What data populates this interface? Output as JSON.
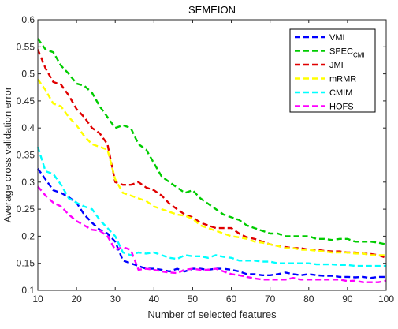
{
  "chart_data": {
    "type": "line",
    "title": "SEMEION",
    "xlabel": "Number of selected features",
    "ylabel": "Average cross validation error",
    "xlim": [
      10,
      100
    ],
    "ylim": [
      0.1,
      0.6
    ],
    "xticks": [
      10,
      20,
      30,
      40,
      50,
      60,
      70,
      80,
      90,
      100
    ],
    "yticks": [
      0.1,
      0.15,
      0.2,
      0.25,
      0.3,
      0.35,
      0.4,
      0.45,
      0.5,
      0.55,
      0.6
    ],
    "ytick_labels": [
      "0.1",
      "0.15",
      "0.2",
      "0.25",
      "0.3",
      "0.35",
      "0.4",
      "0.45",
      "0.5",
      "0.55",
      "0.6"
    ],
    "grid": false,
    "legend_position": "top-right",
    "line_style": "dashed",
    "x": [
      10,
      12,
      14,
      16,
      18,
      20,
      22,
      24,
      26,
      28,
      30,
      32,
      34,
      36,
      38,
      40,
      42,
      44,
      46,
      48,
      50,
      52,
      54,
      56,
      58,
      60,
      62,
      64,
      66,
      68,
      70,
      72,
      74,
      76,
      78,
      80,
      82,
      84,
      86,
      88,
      90,
      92,
      94,
      96,
      98,
      100
    ],
    "series": [
      {
        "name": "VMI",
        "color": "#0000ff",
        "values": [
          0.325,
          0.305,
          0.285,
          0.28,
          0.272,
          0.262,
          0.24,
          0.225,
          0.212,
          0.205,
          0.19,
          0.155,
          0.15,
          0.145,
          0.14,
          0.14,
          0.138,
          0.135,
          0.14,
          0.135,
          0.14,
          0.14,
          0.138,
          0.14,
          0.14,
          0.138,
          0.135,
          0.13,
          0.13,
          0.128,
          0.128,
          0.13,
          0.133,
          0.13,
          0.128,
          0.13,
          0.128,
          0.127,
          0.127,
          0.125,
          0.125,
          0.124,
          0.125,
          0.123,
          0.125,
          0.125
        ]
      },
      {
        "name": "SPEC",
        "name_subscript": "CMI",
        "color": "#00cc00",
        "values": [
          0.565,
          0.545,
          0.54,
          0.515,
          0.5,
          0.482,
          0.478,
          0.465,
          0.44,
          0.42,
          0.4,
          0.405,
          0.4,
          0.37,
          0.36,
          0.335,
          0.31,
          0.3,
          0.29,
          0.28,
          0.285,
          0.27,
          0.26,
          0.25,
          0.24,
          0.235,
          0.23,
          0.22,
          0.215,
          0.21,
          0.205,
          0.205,
          0.2,
          0.2,
          0.2,
          0.2,
          0.195,
          0.195,
          0.193,
          0.195,
          0.195,
          0.19,
          0.19,
          0.19,
          0.188,
          0.185
        ]
      },
      {
        "name": "JMI",
        "color": "#e00000",
        "values": [
          0.545,
          0.51,
          0.485,
          0.48,
          0.46,
          0.435,
          0.42,
          0.4,
          0.39,
          0.37,
          0.3,
          0.295,
          0.295,
          0.3,
          0.29,
          0.285,
          0.275,
          0.26,
          0.25,
          0.24,
          0.235,
          0.225,
          0.22,
          0.215,
          0.215,
          0.215,
          0.205,
          0.198,
          0.195,
          0.19,
          0.185,
          0.182,
          0.18,
          0.178,
          0.178,
          0.175,
          0.175,
          0.173,
          0.172,
          0.172,
          0.17,
          0.17,
          0.168,
          0.167,
          0.165,
          0.16
        ]
      },
      {
        "name": "mRMR",
        "color": "#ffff00",
        "values": [
          0.49,
          0.47,
          0.445,
          0.44,
          0.42,
          0.405,
          0.385,
          0.37,
          0.365,
          0.36,
          0.305,
          0.28,
          0.275,
          0.27,
          0.265,
          0.255,
          0.25,
          0.245,
          0.24,
          0.238,
          0.232,
          0.22,
          0.215,
          0.21,
          0.205,
          0.2,
          0.198,
          0.195,
          0.19,
          0.188,
          0.185,
          0.182,
          0.178,
          0.178,
          0.175,
          0.175,
          0.173,
          0.172,
          0.17,
          0.17,
          0.17,
          0.168,
          0.168,
          0.165,
          0.165,
          0.165
        ]
      },
      {
        "name": "CMIM",
        "color": "#00ffff",
        "values": [
          0.365,
          0.32,
          0.315,
          0.295,
          0.27,
          0.262,
          0.255,
          0.25,
          0.23,
          0.215,
          0.2,
          0.17,
          0.165,
          0.17,
          0.168,
          0.17,
          0.165,
          0.16,
          0.158,
          0.165,
          0.163,
          0.163,
          0.16,
          0.165,
          0.162,
          0.16,
          0.155,
          0.155,
          0.155,
          0.153,
          0.153,
          0.15,
          0.15,
          0.15,
          0.15,
          0.15,
          0.148,
          0.148,
          0.148,
          0.147,
          0.147,
          0.145,
          0.145,
          0.145,
          0.145,
          0.145
        ]
      },
      {
        "name": "HOFS",
        "color": "#ff00ff",
        "values": [
          0.292,
          0.275,
          0.262,
          0.255,
          0.24,
          0.228,
          0.22,
          0.212,
          0.21,
          0.2,
          0.175,
          0.18,
          0.175,
          0.138,
          0.14,
          0.138,
          0.135,
          0.133,
          0.132,
          0.138,
          0.14,
          0.138,
          0.138,
          0.14,
          0.135,
          0.13,
          0.128,
          0.125,
          0.122,
          0.12,
          0.12,
          0.12,
          0.12,
          0.123,
          0.12,
          0.12,
          0.12,
          0.12,
          0.12,
          0.12,
          0.117,
          0.118,
          0.115,
          0.115,
          0.115,
          0.118
        ]
      }
    ]
  }
}
